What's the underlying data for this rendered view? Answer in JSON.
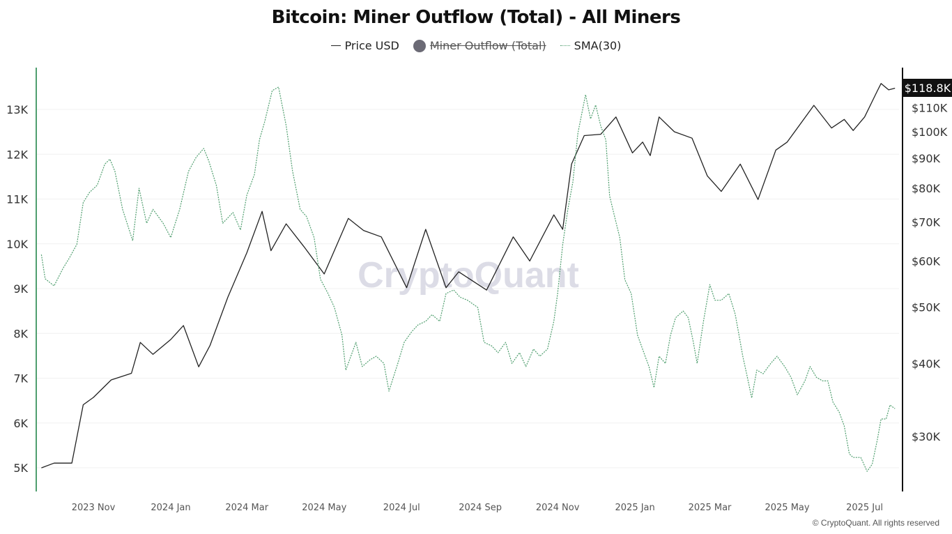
{
  "title": "Bitcoin: Miner Outflow (Total) - All Miners",
  "legend": [
    {
      "label": "Price USD",
      "style": "line",
      "color": "#222222",
      "hidden": false
    },
    {
      "label": "Miner Outflow (Total)",
      "style": "dot",
      "color": "#6b6a75",
      "hidden": true
    },
    {
      "label": "SMA(30)",
      "style": "dotted-line",
      "color": "#4f9e6e",
      "hidden": false
    }
  ],
  "watermark": "CryptoQuant",
  "footer": "© CryptoQuant. All rights reserved",
  "chart_data": {
    "type": "line",
    "title": "Bitcoin: Miner Outflow (Total) - All Miners",
    "grid": true,
    "x_range": [
      "2023-09-21",
      "2025-07-25"
    ],
    "x_ticks": [
      {
        "date": "2023-11-01",
        "label": "2023 Nov"
      },
      {
        "date": "2024-01-01",
        "label": "2024 Jan"
      },
      {
        "date": "2024-03-01",
        "label": "2024 Mar"
      },
      {
        "date": "2024-05-01",
        "label": "2024 May"
      },
      {
        "date": "2024-07-01",
        "label": "2024 Jul"
      },
      {
        "date": "2024-09-01",
        "label": "2024 Sep"
      },
      {
        "date": "2024-11-01",
        "label": "2024 Nov"
      },
      {
        "date": "2025-01-01",
        "label": "2025 Jan"
      },
      {
        "date": "2025-03-01",
        "label": "2025 Mar"
      },
      {
        "date": "2025-05-01",
        "label": "2025 May"
      },
      {
        "date": "2025-07-01",
        "label": "2025 Jul"
      }
    ],
    "left_axis": {
      "scale": "linear",
      "range": [
        4.5,
        14
      ],
      "unit": "K",
      "ticks": [
        {
          "v": 5,
          "label": "5K"
        },
        {
          "v": 6,
          "label": "6K"
        },
        {
          "v": 7,
          "label": "7K"
        },
        {
          "v": 8,
          "label": "8K"
        },
        {
          "v": 9,
          "label": "9K"
        },
        {
          "v": 10,
          "label": "10K"
        },
        {
          "v": 11,
          "label": "11K"
        },
        {
          "v": 12,
          "label": "12K"
        },
        {
          "v": 13,
          "label": "13K"
        }
      ]
    },
    "right_axis": {
      "scale": "log",
      "unit": "USD thousands",
      "ticks": [
        {
          "v": 30,
          "label": "$30K"
        },
        {
          "v": 40,
          "label": "$40K"
        },
        {
          "v": 50,
          "label": "$50K"
        },
        {
          "v": 60,
          "label": "$60K"
        },
        {
          "v": 70,
          "label": "$70K"
        },
        {
          "v": 80,
          "label": "$80K"
        },
        {
          "v": 90,
          "label": "$90K"
        },
        {
          "v": 100,
          "label": "$100K"
        },
        {
          "v": 110,
          "label": "$110K"
        }
      ],
      "current_label": "$118.8K"
    },
    "series": [
      {
        "name": "Price USD",
        "axis": "right",
        "color": "#222222",
        "points": [
          [
            "2023-09-21",
            26.5
          ],
          [
            "2023-10-01",
            27.0
          ],
          [
            "2023-10-15",
            27.0
          ],
          [
            "2023-10-24",
            34.0
          ],
          [
            "2023-11-01",
            35.0
          ],
          [
            "2023-11-15",
            37.5
          ],
          [
            "2023-12-01",
            38.5
          ],
          [
            "2023-12-08",
            43.5
          ],
          [
            "2023-12-18",
            41.5
          ],
          [
            "2024-01-01",
            44.0
          ],
          [
            "2024-01-11",
            46.5
          ],
          [
            "2024-01-23",
            39.5
          ],
          [
            "2024-02-01",
            43.0
          ],
          [
            "2024-02-15",
            52.0
          ],
          [
            "2024-03-01",
            62.0
          ],
          [
            "2024-03-13",
            73.0
          ],
          [
            "2024-03-20",
            62.5
          ],
          [
            "2024-04-01",
            69.5
          ],
          [
            "2024-04-15",
            63.5
          ],
          [
            "2024-05-01",
            57.0
          ],
          [
            "2024-05-20",
            71.0
          ],
          [
            "2024-06-01",
            67.7
          ],
          [
            "2024-06-15",
            66.0
          ],
          [
            "2024-07-05",
            54.0
          ],
          [
            "2024-07-20",
            68.0
          ],
          [
            "2024-08-05",
            54.0
          ],
          [
            "2024-08-15",
            57.5
          ],
          [
            "2024-09-06",
            53.5
          ],
          [
            "2024-09-27",
            66.0
          ],
          [
            "2024-10-10",
            60.0
          ],
          [
            "2024-10-29",
            72.0
          ],
          [
            "2024-11-05",
            68.0
          ],
          [
            "2024-11-12",
            88.0
          ],
          [
            "2024-11-22",
            98.5
          ],
          [
            "2024-12-05",
            99.0
          ],
          [
            "2024-12-17",
            106.0
          ],
          [
            "2024-12-30",
            92.0
          ],
          [
            "2025-01-07",
            96.0
          ],
          [
            "2025-01-13",
            91.0
          ],
          [
            "2025-01-20",
            106.0
          ],
          [
            "2025-02-01",
            100.0
          ],
          [
            "2025-02-15",
            97.5
          ],
          [
            "2025-02-27",
            84.0
          ],
          [
            "2025-03-10",
            79.0
          ],
          [
            "2025-03-25",
            88.0
          ],
          [
            "2025-04-08",
            76.5
          ],
          [
            "2025-04-22",
            93.0
          ],
          [
            "2025-05-01",
            96.0
          ],
          [
            "2025-05-22",
            111.0
          ],
          [
            "2025-06-05",
            101.5
          ],
          [
            "2025-06-15",
            105.0
          ],
          [
            "2025-06-22",
            100.5
          ],
          [
            "2025-07-01",
            106.0
          ],
          [
            "2025-07-11",
            117.5
          ],
          [
            "2025-07-14",
            121.0
          ],
          [
            "2025-07-20",
            118.0
          ],
          [
            "2025-07-25",
            118.8
          ]
        ]
      },
      {
        "name": "SMA(30)",
        "axis": "left",
        "color": "#4f9e6e",
        "points": [
          [
            "2023-09-21",
            9.76
          ],
          [
            "2023-09-24",
            9.22
          ],
          [
            "2023-10-01",
            9.06
          ],
          [
            "2023-10-08",
            9.45
          ],
          [
            "2023-10-13",
            9.68
          ],
          [
            "2023-10-19",
            9.99
          ],
          [
            "2023-10-24",
            10.92
          ],
          [
            "2023-10-29",
            11.15
          ],
          [
            "2023-11-04",
            11.31
          ],
          [
            "2023-11-10",
            11.78
          ],
          [
            "2023-11-14",
            11.89
          ],
          [
            "2023-11-18",
            11.62
          ],
          [
            "2023-11-24",
            10.77
          ],
          [
            "2023-12-02",
            10.07
          ],
          [
            "2023-12-07",
            11.24
          ],
          [
            "2023-12-13",
            10.46
          ],
          [
            "2023-12-18",
            10.77
          ],
          [
            "2023-12-26",
            10.46
          ],
          [
            "2024-01-01",
            10.14
          ],
          [
            "2024-01-08",
            10.77
          ],
          [
            "2024-01-15",
            11.62
          ],
          [
            "2024-01-21",
            11.93
          ],
          [
            "2024-01-27",
            12.13
          ],
          [
            "2024-01-31",
            11.85
          ],
          [
            "2024-02-06",
            11.3
          ],
          [
            "2024-02-11",
            10.46
          ],
          [
            "2024-02-19",
            10.7
          ],
          [
            "2024-02-25",
            10.31
          ],
          [
            "2024-03-01",
            11.09
          ],
          [
            "2024-03-07",
            11.55
          ],
          [
            "2024-03-11",
            12.33
          ],
          [
            "2024-03-15",
            12.72
          ],
          [
            "2024-03-21",
            13.42
          ],
          [
            "2024-03-26",
            13.5
          ],
          [
            "2024-04-01",
            12.64
          ],
          [
            "2024-04-06",
            11.63
          ],
          [
            "2024-04-12",
            10.77
          ],
          [
            "2024-04-17",
            10.61
          ],
          [
            "2024-04-23",
            10.14
          ],
          [
            "2024-04-28",
            9.21
          ],
          [
            "2024-05-04",
            8.89
          ],
          [
            "2024-05-09",
            8.58
          ],
          [
            "2024-05-15",
            7.96
          ],
          [
            "2024-05-18",
            7.18
          ],
          [
            "2024-05-26",
            7.8
          ],
          [
            "2024-05-31",
            7.26
          ],
          [
            "2024-06-06",
            7.41
          ],
          [
            "2024-06-11",
            7.49
          ],
          [
            "2024-06-17",
            7.33
          ],
          [
            "2024-06-21",
            6.71
          ],
          [
            "2024-06-28",
            7.33
          ],
          [
            "2024-07-03",
            7.8
          ],
          [
            "2024-07-09",
            8.04
          ],
          [
            "2024-07-14",
            8.19
          ],
          [
            "2024-07-20",
            8.27
          ],
          [
            "2024-07-25",
            8.42
          ],
          [
            "2024-07-31",
            8.27
          ],
          [
            "2024-08-05",
            8.89
          ],
          [
            "2024-08-11",
            8.97
          ],
          [
            "2024-08-16",
            8.81
          ],
          [
            "2024-08-22",
            8.74
          ],
          [
            "2024-08-30",
            8.58
          ],
          [
            "2024-09-04",
            7.8
          ],
          [
            "2024-09-10",
            7.72
          ],
          [
            "2024-09-15",
            7.57
          ],
          [
            "2024-09-21",
            7.8
          ],
          [
            "2024-09-26",
            7.33
          ],
          [
            "2024-10-02",
            7.57
          ],
          [
            "2024-10-07",
            7.26
          ],
          [
            "2024-10-13",
            7.65
          ],
          [
            "2024-10-18",
            7.49
          ],
          [
            "2024-10-24",
            7.65
          ],
          [
            "2024-10-29",
            8.27
          ],
          [
            "2024-11-01",
            8.89
          ],
          [
            "2024-11-05",
            9.98
          ],
          [
            "2024-11-09",
            10.76
          ],
          [
            "2024-11-13",
            11.38
          ],
          [
            "2024-11-17",
            12.47
          ],
          [
            "2024-11-23",
            13.33
          ],
          [
            "2024-11-27",
            12.79
          ],
          [
            "2024-12-01",
            13.1
          ],
          [
            "2024-12-05",
            12.63
          ],
          [
            "2024-12-09",
            12.32
          ],
          [
            "2024-12-12",
            11.07
          ],
          [
            "2024-12-16",
            10.6
          ],
          [
            "2024-12-20",
            10.14
          ],
          [
            "2024-12-24",
            9.2
          ],
          [
            "2024-12-29",
            8.89
          ],
          [
            "2025-01-03",
            7.96
          ],
          [
            "2025-01-09",
            7.49
          ],
          [
            "2025-01-12",
            7.26
          ],
          [
            "2025-01-16",
            6.79
          ],
          [
            "2025-01-20",
            7.49
          ],
          [
            "2025-01-25",
            7.33
          ],
          [
            "2025-01-29",
            7.96
          ],
          [
            "2025-02-02",
            8.35
          ],
          [
            "2025-02-08",
            8.5
          ],
          [
            "2025-02-12",
            8.35
          ],
          [
            "2025-02-16",
            7.8
          ],
          [
            "2025-02-19",
            7.33
          ],
          [
            "2025-02-24",
            8.27
          ],
          [
            "2025-03-01",
            9.09
          ],
          [
            "2025-03-05",
            8.74
          ],
          [
            "2025-03-10",
            8.74
          ],
          [
            "2025-03-16",
            8.89
          ],
          [
            "2025-03-21",
            8.43
          ],
          [
            "2025-03-24",
            7.96
          ],
          [
            "2025-03-27",
            7.49
          ],
          [
            "2025-03-30",
            7.1
          ],
          [
            "2025-04-03",
            6.56
          ],
          [
            "2025-04-07",
            7.18
          ],
          [
            "2025-04-12",
            7.1
          ],
          [
            "2025-04-18",
            7.33
          ],
          [
            "2025-04-23",
            7.49
          ],
          [
            "2025-04-29",
            7.26
          ],
          [
            "2025-05-04",
            7.02
          ],
          [
            "2025-05-09",
            6.63
          ],
          [
            "2025-05-15",
            6.94
          ],
          [
            "2025-05-19",
            7.26
          ],
          [
            "2025-05-24",
            7.02
          ],
          [
            "2025-05-29",
            6.94
          ],
          [
            "2025-06-02",
            6.94
          ],
          [
            "2025-06-06",
            6.47
          ],
          [
            "2025-06-11",
            6.24
          ],
          [
            "2025-06-15",
            5.93
          ],
          [
            "2025-06-19",
            5.31
          ],
          [
            "2025-06-22",
            5.23
          ],
          [
            "2025-06-28",
            5.23
          ],
          [
            "2025-07-03",
            4.92
          ],
          [
            "2025-07-07",
            5.08
          ],
          [
            "2025-07-11",
            5.62
          ],
          [
            "2025-07-14",
            6.09
          ],
          [
            "2025-07-18",
            6.09
          ],
          [
            "2025-07-21",
            6.4
          ],
          [
            "2025-07-25",
            6.32
          ]
        ]
      }
    ]
  }
}
